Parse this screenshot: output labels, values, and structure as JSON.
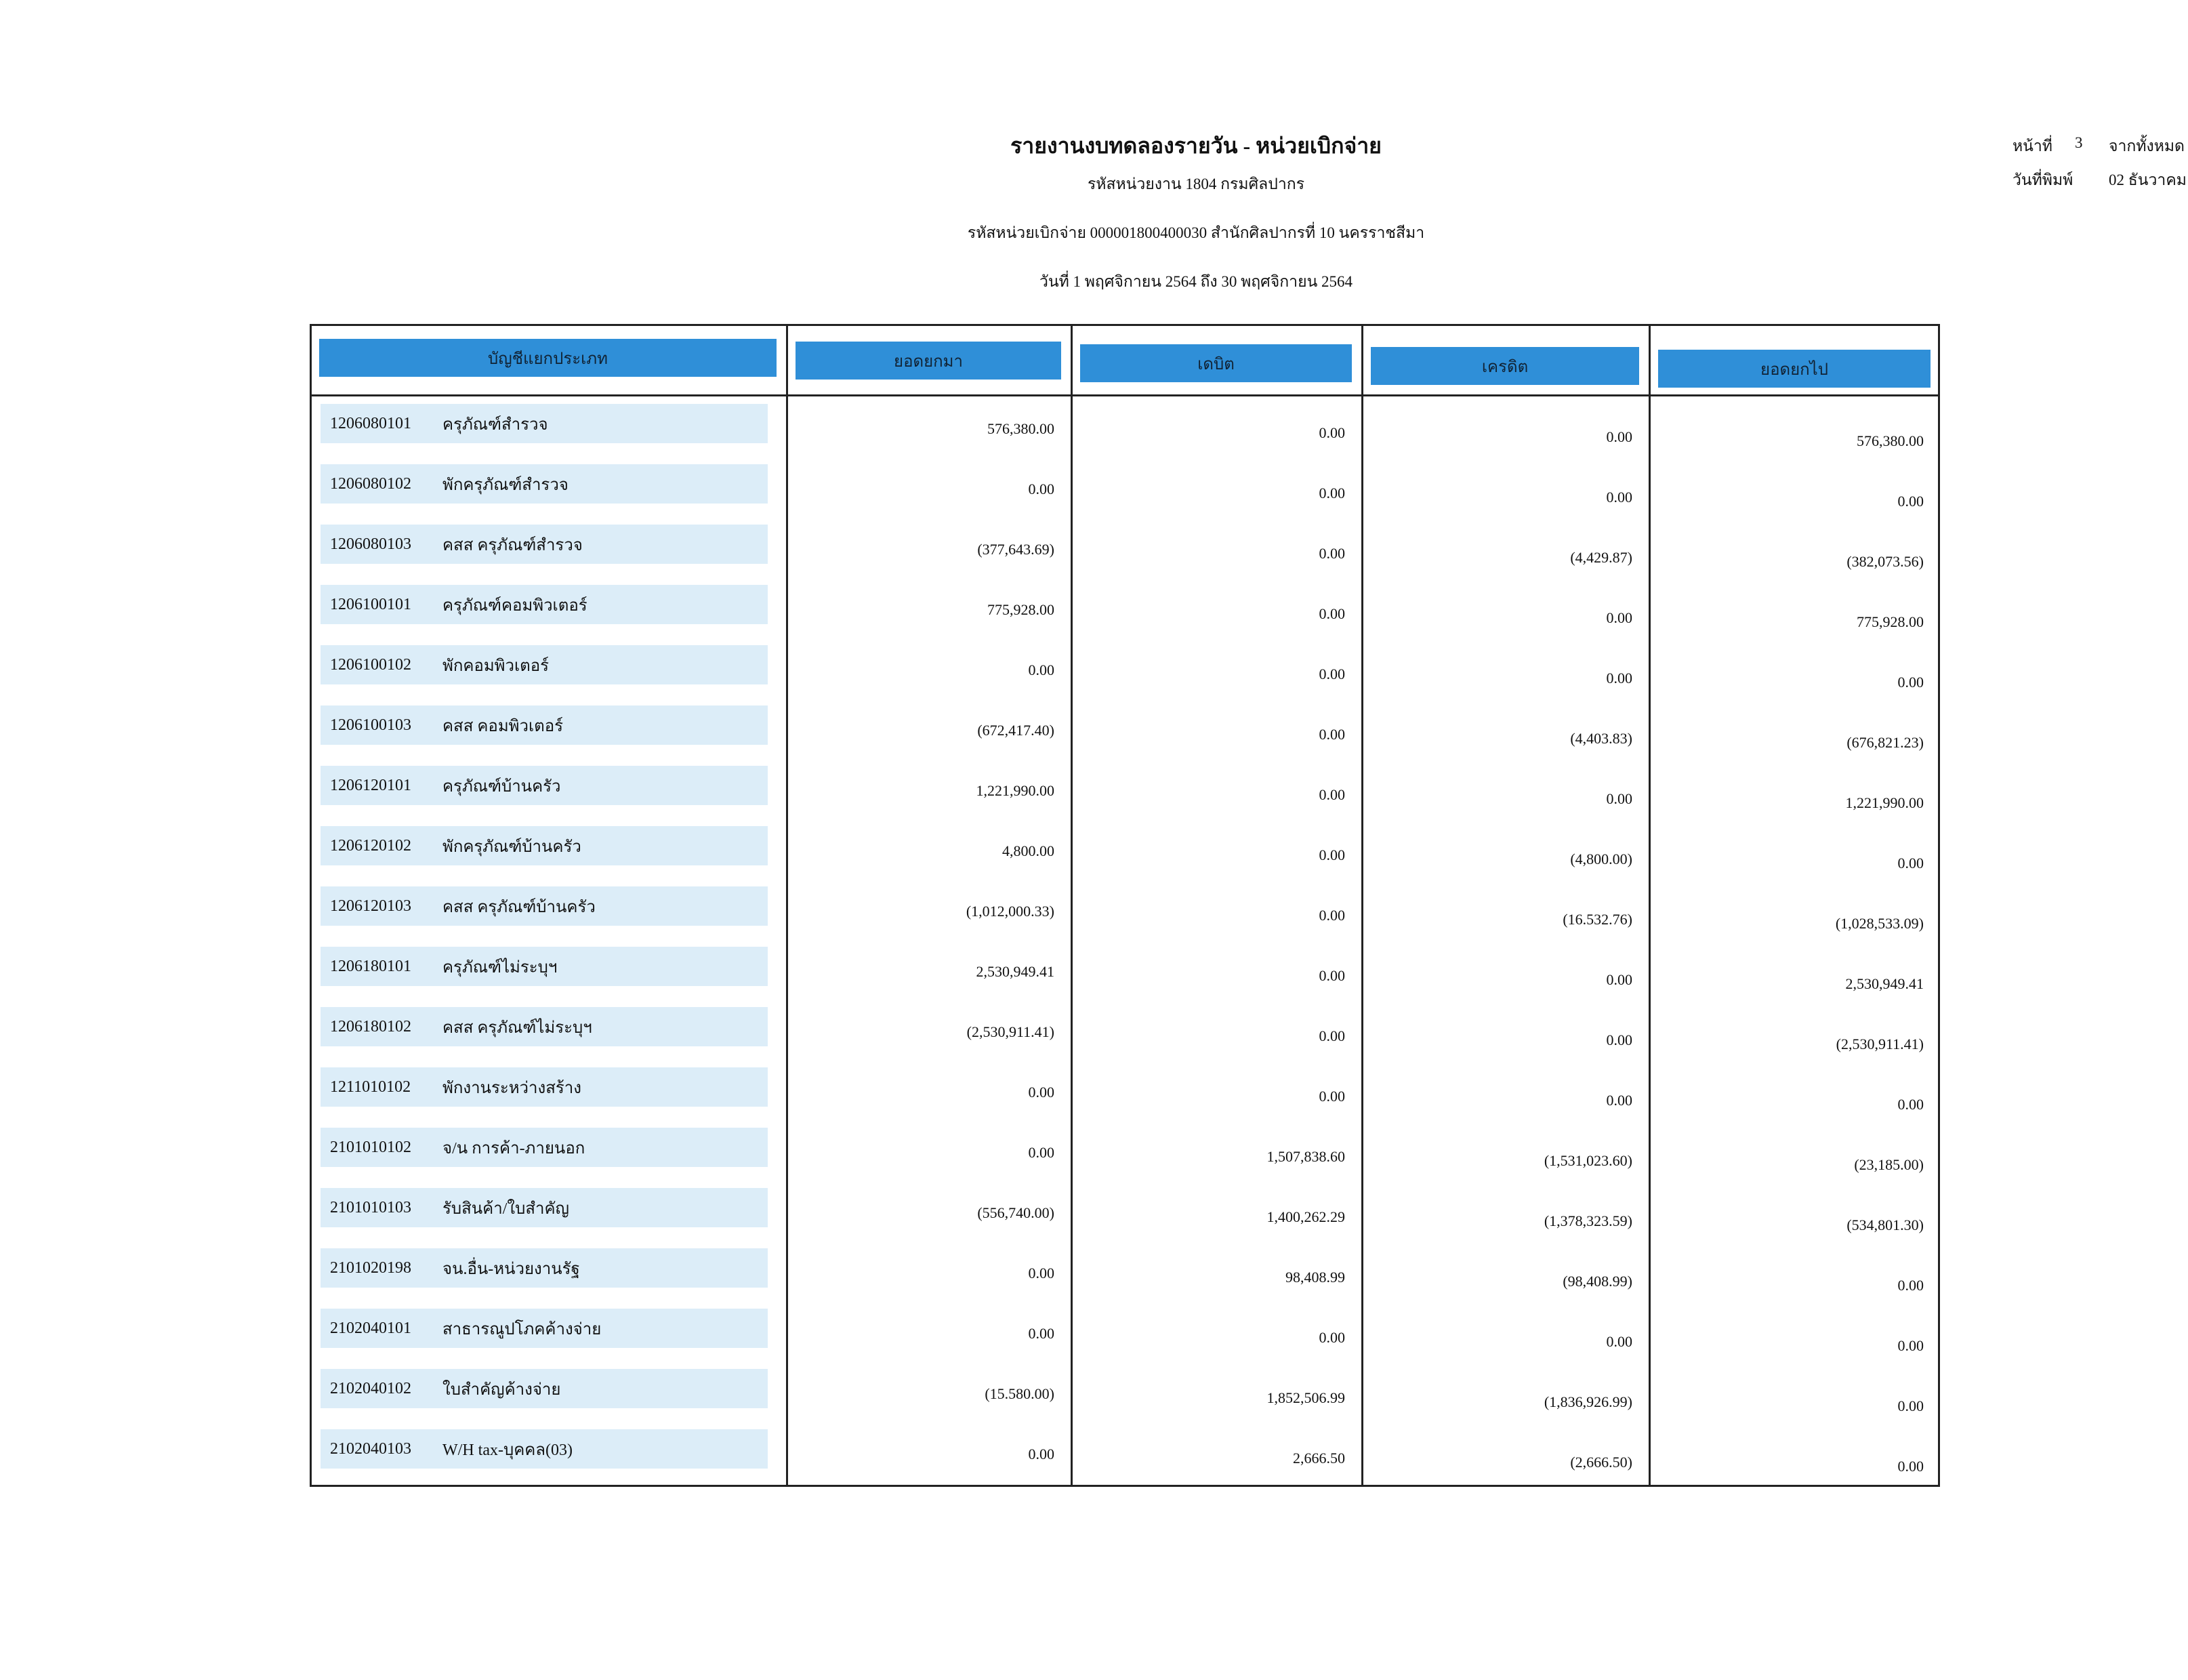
{
  "header": {
    "title": "รายงานงบทดลองรายวัน - หน่วยเบิกจ่าย",
    "agency": "รหัสหน่วยงาน 1804 กรมศิลปากร",
    "disbursing_unit": "รหัสหน่วยเบิกจ่าย 000001800400030 สำนักศิลปากรที่ 10 นครราชสีมา",
    "period": "วันที่ 1 พฤศจิกายน 2564 ถึง 30 พฤศจิกายน 2564",
    "page_label": "หน้าที่",
    "page_number": "3",
    "page_of": "จากทั้งหมด",
    "print_label": "วันที่พิมพ์",
    "print_date": "02 ธันวาคม"
  },
  "table": {
    "columns": [
      "บัญชีแยกประเภท",
      "ยอดยกมา",
      "เดบิต",
      "เครดิต",
      "ยอดยกไป"
    ],
    "rows": [
      [
        "1206080101",
        "ครุภัณฑ์สำรวจ",
        "576,380.00",
        "0.00",
        "0.00",
        "576,380.00"
      ],
      [
        "1206080102",
        "พักครุภัณฑ์สำรวจ",
        "0.00",
        "0.00",
        "0.00",
        "0.00"
      ],
      [
        "1206080103",
        "คสส ครุภัณฑ์สำรวจ",
        "(377,643.69)",
        "0.00",
        "(4,429.87)",
        "(382,073.56)"
      ],
      [
        "1206100101",
        "ครุภัณฑ์คอมพิวเตอร์",
        "775,928.00",
        "0.00",
        "0.00",
        "775,928.00"
      ],
      [
        "1206100102",
        "พักคอมพิวเตอร์",
        "0.00",
        "0.00",
        "0.00",
        "0.00"
      ],
      [
        "1206100103",
        "คสส คอมพิวเตอร์",
        "(672,417.40)",
        "0.00",
        "(4,403.83)",
        "(676,821.23)"
      ],
      [
        "1206120101",
        "ครุภัณฑ์บ้านครัว",
        "1,221,990.00",
        "0.00",
        "0.00",
        "1,221,990.00"
      ],
      [
        "1206120102",
        "พักครุภัณฑ์บ้านครัว",
        "4,800.00",
        "0.00",
        "(4,800.00)",
        "0.00"
      ],
      [
        "1206120103",
        "คสส ครุภัณฑ์บ้านครัว",
        "(1,012,000.33)",
        "0.00",
        "(16.532.76)",
        "(1,028,533.09)"
      ],
      [
        "1206180101",
        "ครุภัณฑ์ไม่ระบุฯ",
        "2,530,949.41",
        "0.00",
        "0.00",
        "2,530,949.41"
      ],
      [
        "1206180102",
        "คสส ครุภัณฑ์ไม่ระบุฯ",
        "(2,530,911.41)",
        "0.00",
        "0.00",
        "(2,530,911.41)"
      ],
      [
        "1211010102",
        "พักงานระหว่างสร้าง",
        "0.00",
        "0.00",
        "0.00",
        "0.00"
      ],
      [
        "2101010102",
        "จ/น การค้า-ภายนอก",
        "0.00",
        "1,507,838.60",
        "(1,531,023.60)",
        "(23,185.00)"
      ],
      [
        "2101010103",
        "รับสินค้า/ใบสำคัญ",
        "(556,740.00)",
        "1,400,262.29",
        "(1,378,323.59)",
        "(534,801.30)"
      ],
      [
        "2101020198",
        "จน.อื่น-หน่วยงานรัฐ",
        "0.00",
        "98,408.99",
        "(98,408.99)",
        "0.00"
      ],
      [
        "2102040101",
        "สาธารณูปโภคค้างจ่าย",
        "0.00",
        "0.00",
        "0.00",
        "0.00"
      ],
      [
        "2102040102",
        "ใบสำคัญค้างจ่าย",
        "(15.580.00)",
        "1,852,506.99",
        "(1,836,926.99)",
        "0.00"
      ],
      [
        "2102040103",
        "W/H tax-บุคคล(03)",
        "0.00",
        "2,666.50",
        "(2,666.50)",
        "0.00"
      ]
    ]
  }
}
